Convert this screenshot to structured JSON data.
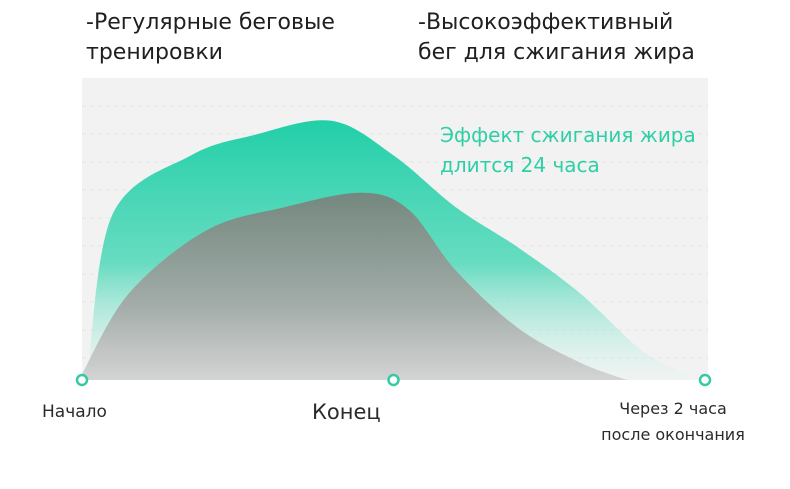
{
  "legend": {
    "regular": [
      "-Регулярные беговые",
      "тренировки"
    ],
    "hiit": [
      "-Высокоэффективный",
      "бег для сжигания жира"
    ]
  },
  "annotation": [
    "Эффект сжигания жира",
    "длится 24 часа"
  ],
  "colors": {
    "background_panel": "#f2f2f2",
    "grid": "#e4e4e4",
    "hiit_top": "#21cfa8",
    "regular_top": "#7b8e87",
    "marker": "#35c9a4",
    "annotation": "#2fcfa6"
  },
  "chart_data": {
    "type": "area",
    "x_categories": [
      "Начало",
      "Конец",
      [
        "Через 2 часа",
        "после окончания"
      ]
    ],
    "x_range": [
      0,
      2
    ],
    "y_range": [
      0,
      1
    ],
    "grid": true,
    "series": [
      {
        "name": "-Высокоэффективный бег для сжигания жира",
        "x": [
          0.02,
          0.1,
          0.35,
          0.55,
          0.8,
          1.0,
          1.2,
          1.4,
          1.6,
          1.8,
          1.95
        ],
        "y": [
          0.05,
          0.58,
          0.78,
          0.85,
          0.9,
          0.78,
          0.6,
          0.46,
          0.3,
          0.1,
          0.02
        ]
      },
      {
        "name": "-Регулярные беговые тренировки",
        "x": [
          0.0,
          0.15,
          0.4,
          0.65,
          0.9,
          1.05,
          1.2,
          1.4,
          1.6,
          1.75
        ],
        "y": [
          0.02,
          0.3,
          0.52,
          0.6,
          0.65,
          0.59,
          0.38,
          0.18,
          0.06,
          0.0
        ]
      }
    ],
    "markers_x": [
      0,
      1,
      2
    ]
  }
}
